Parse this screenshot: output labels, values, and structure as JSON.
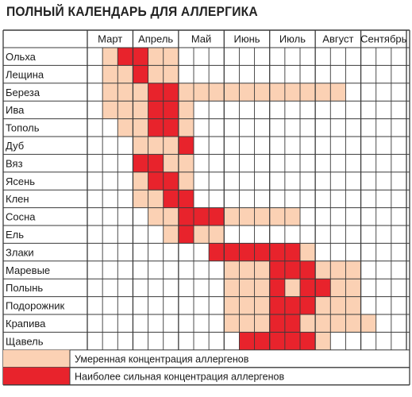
{
  "title": "ПОЛНЫЙ КАЛЕНДАРЬ ДЛЯ АЛЛЕРГИКА",
  "colors": {
    "moderate": "#fbd1b4",
    "strong": "#e8232c",
    "grid": "#3a3a3a"
  },
  "chart_data": {
    "type": "heatmap",
    "title": "ПОЛНЫЙ КАЛЕНДАРЬ ДЛЯ АЛЛЕРГИКА",
    "months": [
      "Март",
      "Апрель",
      "Май",
      "Июнь",
      "Июль",
      "Август",
      "Сентябрь"
    ],
    "periods_per_month": 3,
    "value_codes": {
      "0": "none",
      "1": "moderate",
      "2": "strong"
    },
    "plants": [
      {
        "name": "Ольха",
        "values": [
          0,
          1,
          2,
          2,
          1,
          1,
          0,
          0,
          0,
          0,
          0,
          0,
          0,
          0,
          0,
          0,
          0,
          0,
          0,
          0,
          0
        ]
      },
      {
        "name": "Лещина",
        "values": [
          0,
          1,
          1,
          2,
          1,
          1,
          0,
          0,
          0,
          0,
          0,
          0,
          0,
          0,
          0,
          0,
          0,
          0,
          0,
          0,
          0
        ]
      },
      {
        "name": "Береза",
        "values": [
          0,
          1,
          1,
          1,
          2,
          2,
          1,
          1,
          1,
          1,
          1,
          1,
          1,
          1,
          1,
          1,
          1,
          0,
          0,
          0,
          0
        ]
      },
      {
        "name": "Ива",
        "values": [
          0,
          1,
          1,
          1,
          2,
          2,
          1,
          0,
          0,
          0,
          0,
          0,
          0,
          0,
          0,
          0,
          0,
          0,
          0,
          0,
          0
        ]
      },
      {
        "name": "Тополь",
        "values": [
          0,
          0,
          1,
          1,
          2,
          2,
          1,
          0,
          0,
          0,
          0,
          0,
          0,
          0,
          0,
          0,
          0,
          0,
          0,
          0,
          0
        ]
      },
      {
        "name": "Дуб",
        "values": [
          0,
          0,
          0,
          1,
          1,
          1,
          2,
          0,
          0,
          0,
          0,
          0,
          0,
          0,
          0,
          0,
          0,
          0,
          0,
          0,
          0
        ]
      },
      {
        "name": "Вяз",
        "values": [
          0,
          0,
          0,
          2,
          2,
          1,
          1,
          0,
          0,
          0,
          0,
          0,
          0,
          0,
          0,
          0,
          0,
          0,
          0,
          0,
          0
        ]
      },
      {
        "name": "Ясень",
        "values": [
          0,
          0,
          0,
          1,
          2,
          2,
          1,
          0,
          0,
          0,
          0,
          0,
          0,
          0,
          0,
          0,
          0,
          0,
          0,
          0,
          0
        ]
      },
      {
        "name": "Клен",
        "values": [
          0,
          0,
          0,
          1,
          1,
          2,
          2,
          0,
          0,
          0,
          0,
          0,
          0,
          0,
          0,
          0,
          0,
          0,
          0,
          0,
          0
        ]
      },
      {
        "name": "Сосна",
        "values": [
          0,
          0,
          0,
          0,
          1,
          1,
          2,
          2,
          2,
          1,
          1,
          1,
          1,
          1,
          0,
          0,
          0,
          0,
          0,
          0,
          0
        ]
      },
      {
        "name": "Ель",
        "values": [
          0,
          0,
          0,
          0,
          0,
          1,
          2,
          1,
          1,
          0,
          0,
          0,
          0,
          0,
          0,
          0,
          0,
          0,
          0,
          0,
          0
        ]
      },
      {
        "name": "Злаки",
        "values": [
          0,
          0,
          0,
          0,
          0,
          0,
          0,
          0,
          2,
          2,
          2,
          2,
          2,
          2,
          1,
          0,
          0,
          0,
          0,
          0,
          0
        ]
      },
      {
        "name": "Маревые",
        "values": [
          0,
          0,
          0,
          0,
          0,
          0,
          0,
          0,
          0,
          1,
          1,
          1,
          2,
          2,
          2,
          1,
          1,
          1,
          0,
          0,
          0
        ]
      },
      {
        "name": "Полынь",
        "values": [
          0,
          0,
          0,
          0,
          0,
          0,
          0,
          0,
          0,
          1,
          1,
          1,
          2,
          1,
          2,
          2,
          1,
          1,
          0,
          0,
          0
        ]
      },
      {
        "name": "Подорожник",
        "values": [
          0,
          0,
          0,
          0,
          0,
          0,
          0,
          0,
          0,
          1,
          1,
          1,
          2,
          2,
          2,
          1,
          1,
          1,
          0,
          0,
          0
        ]
      },
      {
        "name": "Крапива",
        "values": [
          0,
          0,
          0,
          0,
          0,
          0,
          0,
          0,
          0,
          1,
          1,
          1,
          2,
          2,
          1,
          1,
          1,
          1,
          1,
          0,
          0
        ]
      },
      {
        "name": "Щавель",
        "values": [
          0,
          0,
          0,
          0,
          0,
          0,
          0,
          0,
          0,
          0,
          2,
          2,
          2,
          2,
          2,
          1,
          0,
          0,
          0,
          0,
          0
        ]
      }
    ],
    "legend": [
      {
        "key": "moderate",
        "label": "Умеренная концентрация аллергенов"
      },
      {
        "key": "strong",
        "label": "Наиболее сильная концентрация аллергенов"
      }
    ],
    "legend_placement": "bottom"
  }
}
